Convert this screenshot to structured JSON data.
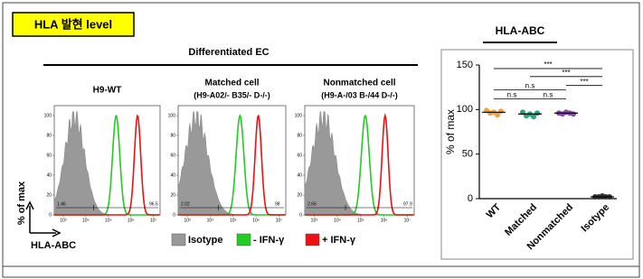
{
  "label": "HLA 발현 level",
  "section_title": "Differentiated EC",
  "histograms": {
    "ylabel": "% of max",
    "xlabel": "HLA-ABC",
    "ylim": [
      0,
      110
    ],
    "yticks": [
      0,
      20,
      40,
      60,
      80,
      100
    ],
    "xlim": [
      2.6,
      7.3
    ],
    "xticks": [
      {
        "value": 3,
        "label": "10³"
      },
      {
        "value": 4,
        "label": "10⁴"
      },
      {
        "value": 5,
        "label": "10⁵"
      },
      {
        "value": 6,
        "label": "10⁶"
      },
      {
        "value": 7,
        "label": "10⁷"
      }
    ],
    "panels": [
      {
        "title": "H9-WT",
        "gate_left": 1.46,
        "gate_right": 96.5
      },
      {
        "title": "Matched cell",
        "subtitle": "(H9-A02/- B35/- D-/-)",
        "gate_left": 2.02,
        "gate_right": 98
      },
      {
        "title": "Nonmatched cell",
        "subtitle": "(H9-A-/03 B-/44 D-/-)",
        "gate_left": 2.66,
        "gate_right": 97.9
      }
    ],
    "legend": [
      {
        "name": "Isotype",
        "color": "#999999"
      },
      {
        "name": "- IFN-γ",
        "color": "#22cc22"
      },
      {
        "name": "+ IFN-γ",
        "color": "#ee1111"
      }
    ]
  },
  "chart_data": {
    "type": "strip",
    "title": "HLA-ABC",
    "ylabel": "% of max",
    "categories": [
      "WT",
      "Matched",
      "Nonmatched",
      "Isotype"
    ],
    "colors": [
      "#f4a040",
      "#2aa878",
      "#8a4aa8",
      "#333333"
    ],
    "values": [
      97,
      95,
      96,
      2
    ],
    "points": [
      [
        99,
        96,
        97,
        94,
        98
      ],
      [
        97,
        93,
        95,
        92,
        96
      ],
      [
        96,
        95,
        97,
        96,
        95
      ],
      [
        2,
        2,
        3,
        2,
        2
      ]
    ],
    "ylim": [
      0,
      150
    ],
    "yticks": [
      0,
      50,
      100,
      150
    ],
    "annotations": [
      "n.s",
      "n.s",
      "n.s",
      "***",
      "***",
      "***"
    ]
  }
}
